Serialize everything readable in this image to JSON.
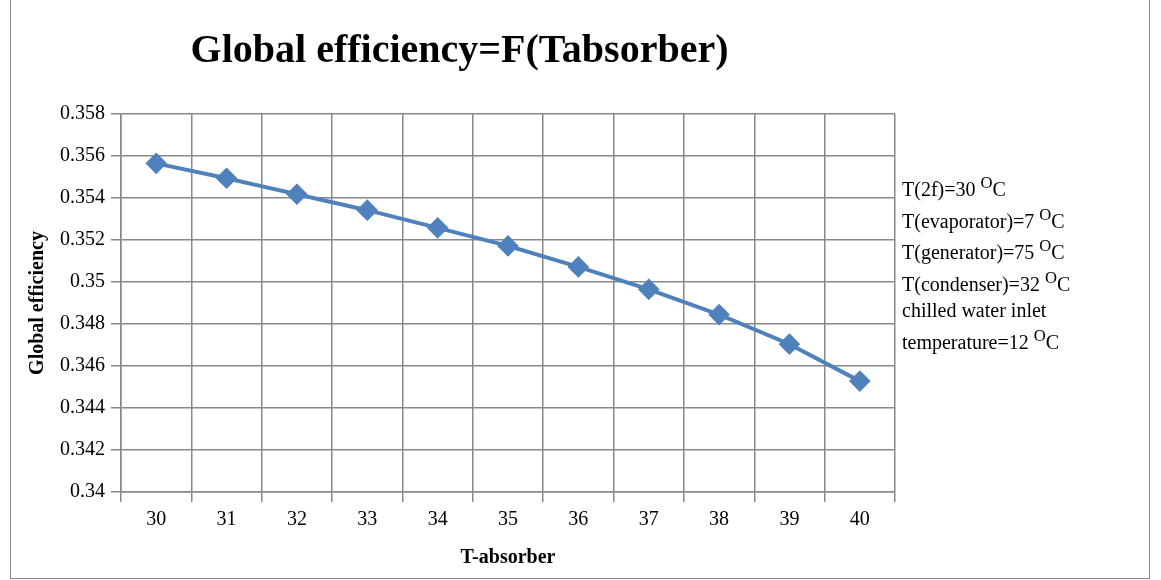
{
  "chart_data": {
    "type": "line",
    "title": "Global efficiency=F(Tabsorber)",
    "xlabel": "T-absorber",
    "ylabel": "Global efficiency",
    "categories": [
      "30",
      "31",
      "32",
      "33",
      "34",
      "35",
      "36",
      "37",
      "38",
      "39",
      "40"
    ],
    "series": [
      {
        "color": "#4f81bd",
        "values": [
          0.35565,
          0.35494,
          0.35418,
          0.35342,
          0.35258,
          0.35172,
          0.35072,
          0.34965,
          0.34845,
          0.34704,
          0.34528
        ]
      }
    ],
    "ylim": [
      0.34,
      0.358
    ],
    "yticks": [
      0.34,
      0.342,
      0.344,
      0.346,
      0.348,
      0.35,
      0.352,
      0.354,
      0.356,
      0.358
    ],
    "grid": true,
    "legend": false,
    "marker": "diamond",
    "line_style": "solid",
    "annotations": [
      "T(2f)=30 $^{O}$C",
      "T(evaporator)=7 $^{O}$C",
      "T(generator)=75 $^{O}$C",
      "T(condenser)=32 $^{O}$C",
      "chilled water inlet temperature=12 $^{O}$C"
    ]
  }
}
